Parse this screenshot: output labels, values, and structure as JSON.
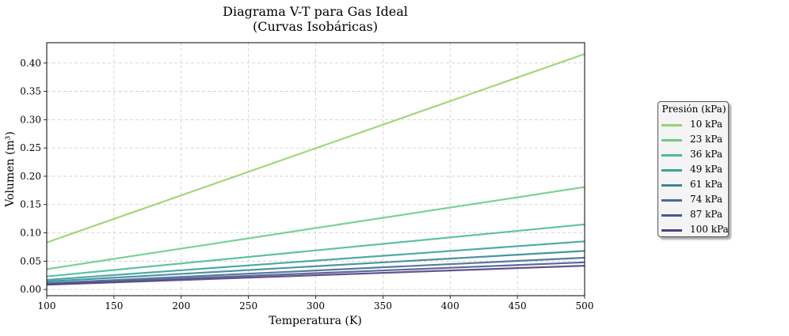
{
  "chart_data": {
    "type": "line",
    "title": "Diagrama V-T para Gas Ideal",
    "subtitle": "(Curvas Isobáricas)",
    "xlabel": "Temperatura (K)",
    "ylabel": "Volumen (m³)",
    "xlim": [
      100,
      500
    ],
    "ylim": [
      -0.011,
      0.436
    ],
    "xticks": [
      100,
      150,
      200,
      250,
      300,
      350,
      400,
      450,
      500
    ],
    "yticks": [
      0.0,
      0.05,
      0.1,
      0.15,
      0.2,
      0.25,
      0.3,
      0.35,
      0.4
    ],
    "grid": true,
    "legend_title": "Presión (kPa)",
    "legend_position": "right",
    "series": [
      {
        "name": "10 kPa",
        "color": "#97d36f",
        "x": [
          100,
          500
        ],
        "y": [
          0.083,
          0.416
        ]
      },
      {
        "name": "23 kPa",
        "color": "#6ccd86",
        "x": [
          100,
          500
        ],
        "y": [
          0.036,
          0.181
        ]
      },
      {
        "name": "36 kPa",
        "color": "#4bbb98",
        "x": [
          100,
          500
        ],
        "y": [
          0.023,
          0.115
        ]
      },
      {
        "name": "49 kPa",
        "color": "#3aa19a",
        "x": [
          100,
          500
        ],
        "y": [
          0.017,
          0.085
        ]
      },
      {
        "name": "61 kPa",
        "color": "#3b8795",
        "x": [
          100,
          500
        ],
        "y": [
          0.014,
          0.068
        ]
      },
      {
        "name": "74 kPa",
        "color": "#446c94",
        "x": [
          100,
          500
        ],
        "y": [
          0.011,
          0.056
        ]
      },
      {
        "name": "87 kPa",
        "color": "#4b5890",
        "x": [
          100,
          500
        ],
        "y": [
          0.0096,
          0.048
        ]
      },
      {
        "name": "100 kPa",
        "color": "#553f7f",
        "x": [
          100,
          500
        ],
        "y": [
          0.0083,
          0.042
        ]
      }
    ]
  }
}
